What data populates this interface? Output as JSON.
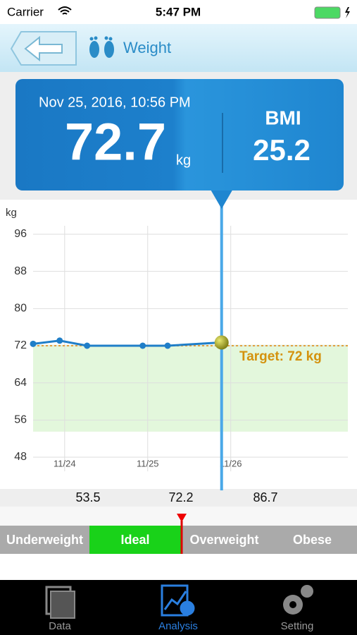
{
  "status_bar": {
    "carrier": "Carrier",
    "time": "5:47 PM"
  },
  "header": {
    "title": "Weight"
  },
  "reading": {
    "datetime": "Nov 25, 2016, 10:56 PM",
    "weight": 72.7,
    "weight_unit": "kg",
    "bmi_label": "BMI",
    "bmi": 25.2
  },
  "chart_data": {
    "type": "line",
    "y_label": "kg",
    "x": [
      -0.38,
      -0.06,
      0.27,
      0.94,
      1.24,
      1.89
    ],
    "series": [
      {
        "color": "#1f7ec8",
        "values": [
          72.4,
          73.1,
          72,
          72,
          72,
          72.7
        ]
      }
    ],
    "xlim": [
      -0.38,
      3.41
    ],
    "xticks": [
      {
        "value": 0,
        "label": "11/24"
      },
      {
        "value": 1,
        "label": "11/25"
      },
      {
        "value": 2,
        "label": "11/26"
      }
    ],
    "ylim": [
      48,
      96
    ],
    "yticks": [
      48,
      56,
      64,
      72,
      80,
      88,
      96
    ],
    "grid": true,
    "target_value": 72,
    "target_label": "Target: 72 kg"
  },
  "scale": {
    "thresholds": [
      53.5,
      72.2,
      86.7
    ],
    "categories": [
      "Underweight",
      "Ideal",
      "Overweight",
      "Obese"
    ]
  },
  "tab_bar": {
    "tabs": [
      "Data",
      "Analysis",
      "Setting"
    ]
  }
}
